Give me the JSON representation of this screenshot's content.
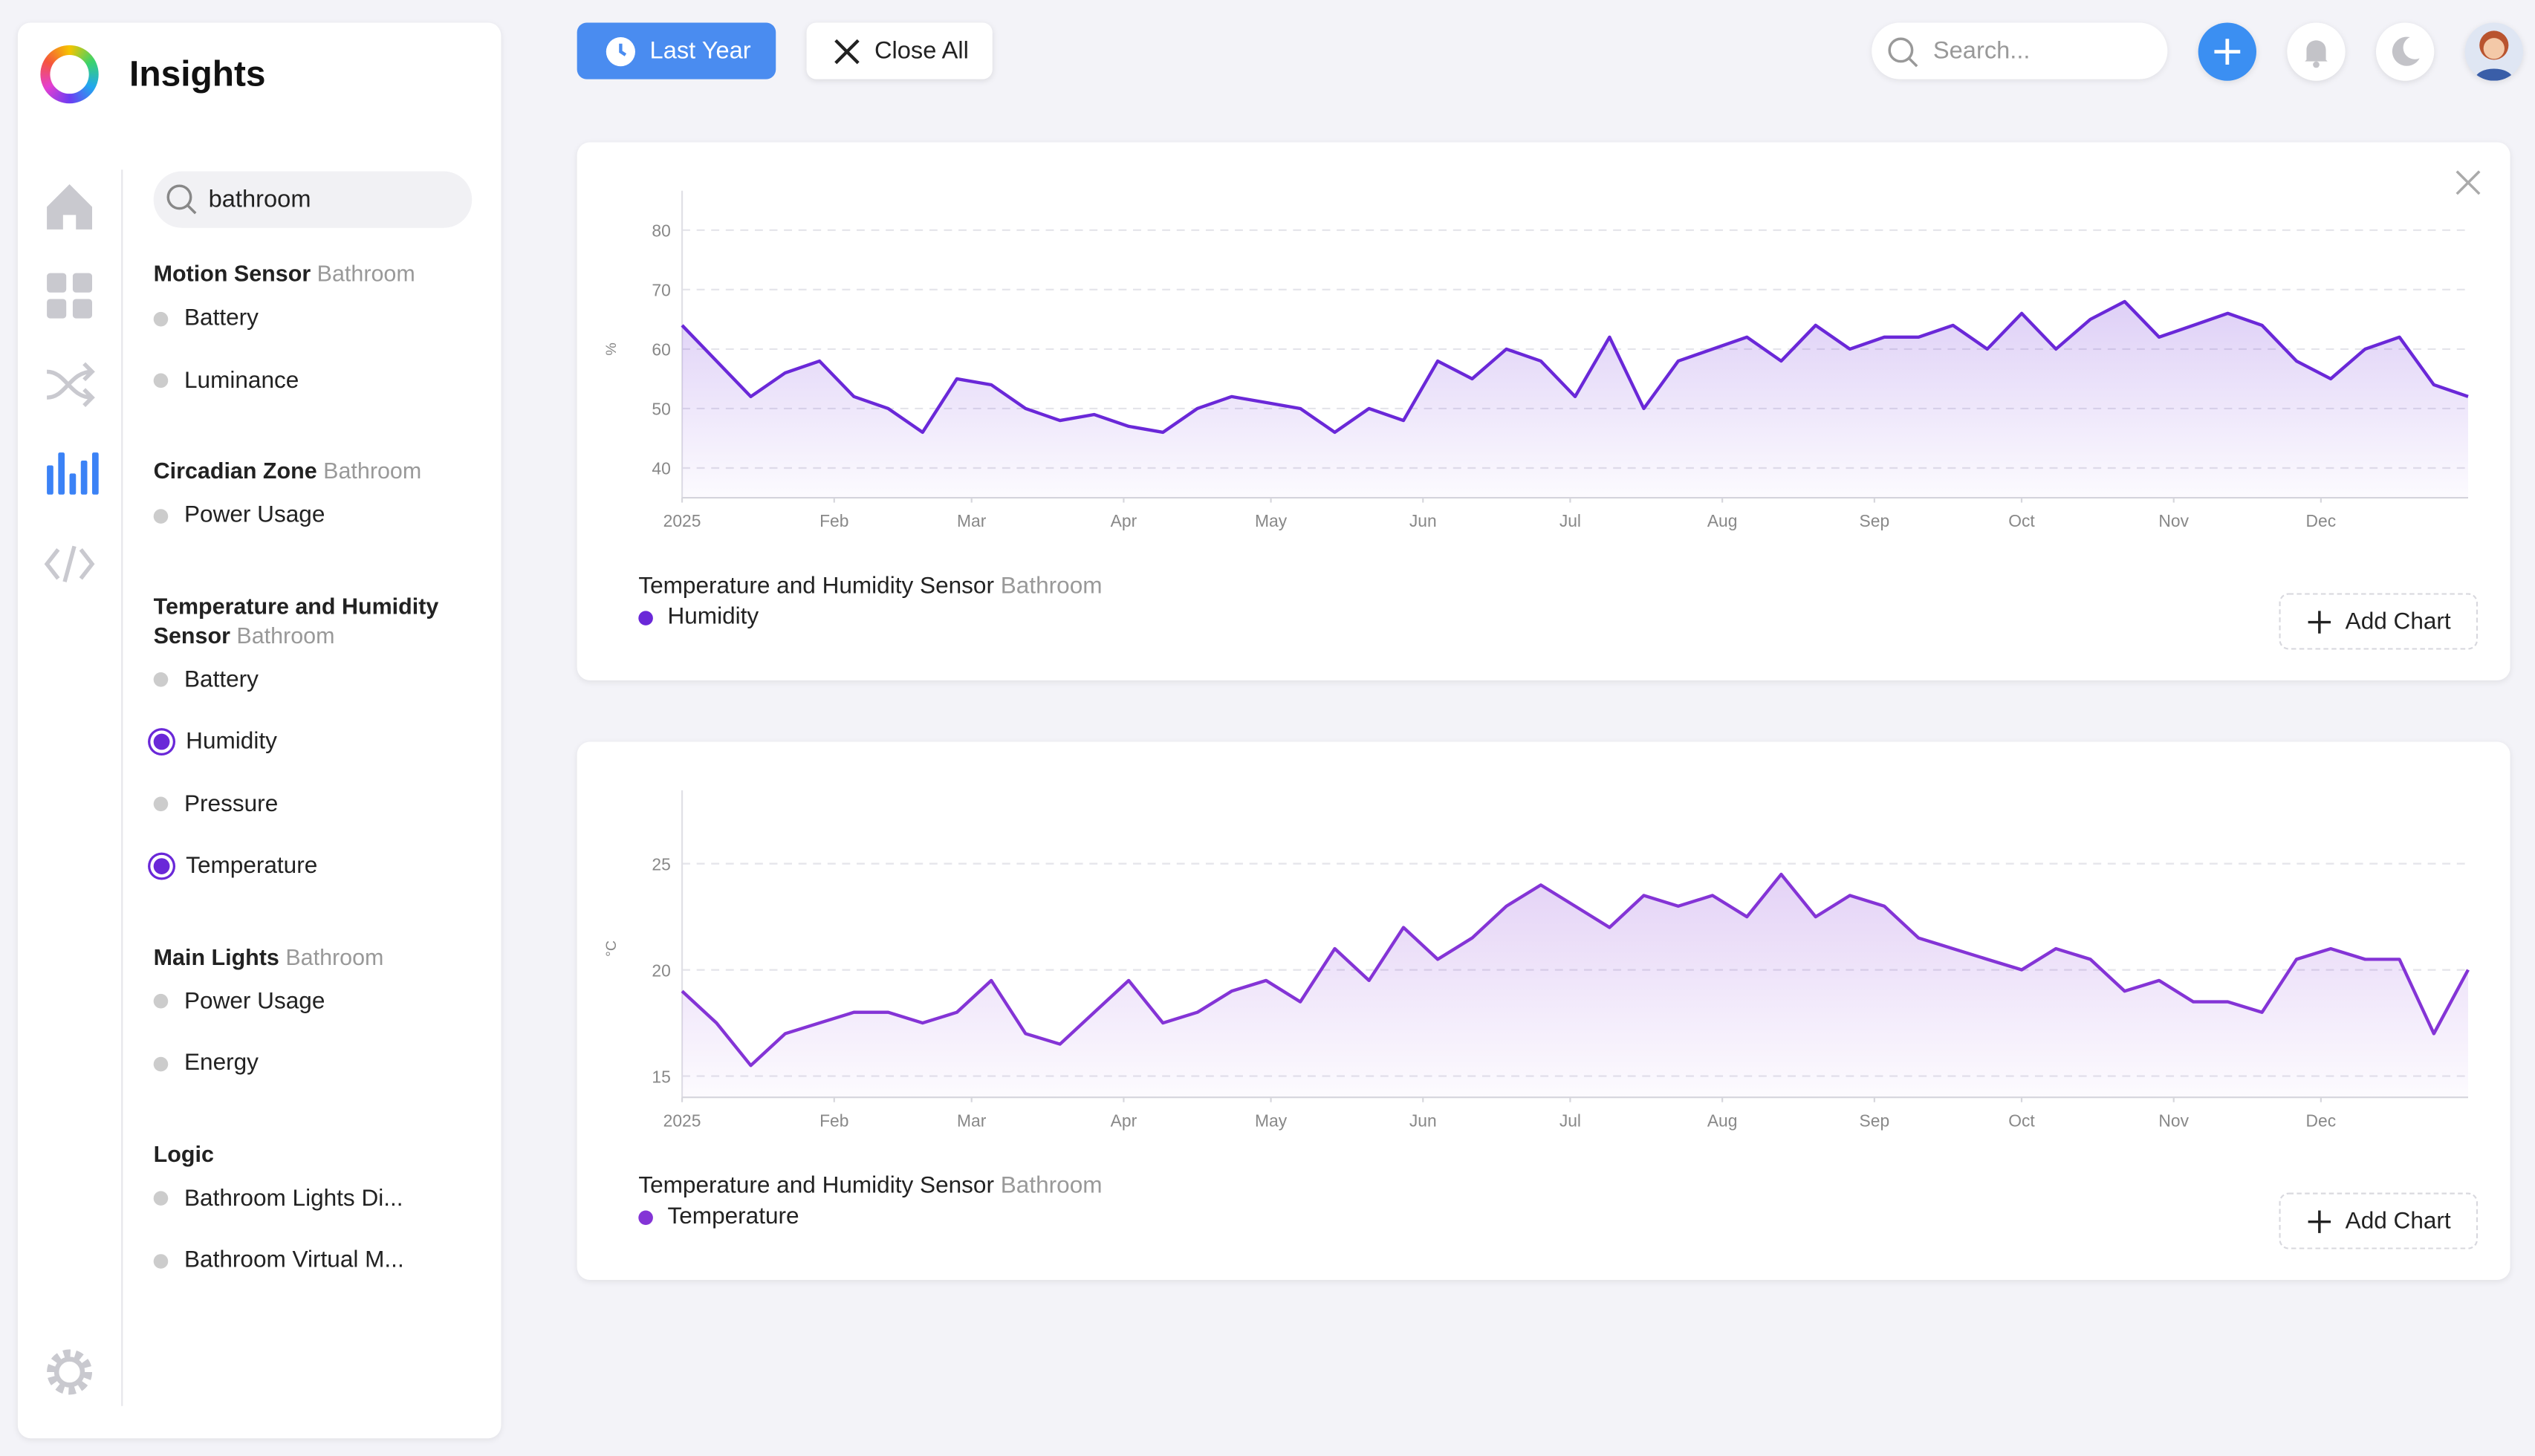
{
  "header": {
    "title": "Insights"
  },
  "toolbar": {
    "range": "Last Year",
    "close_all": "Close All",
    "search_placeholder": "Search..."
  },
  "sidebar": {
    "search": "bathroom",
    "groups": [
      {
        "name": "Motion Sensor",
        "location": "Bathroom",
        "items": [
          {
            "label": "Battery",
            "selected": false
          },
          {
            "label": "Luminance",
            "selected": false
          }
        ]
      },
      {
        "name": "Circadian Zone",
        "location": "Bathroom",
        "items": [
          {
            "label": "Power Usage",
            "selected": false
          }
        ]
      },
      {
        "name": "Temperature and Humidity Sensor",
        "location": "Bathroom",
        "items": [
          {
            "label": "Battery",
            "selected": false
          },
          {
            "label": "Humidity",
            "selected": true
          },
          {
            "label": "Pressure",
            "selected": false
          },
          {
            "label": "Temperature",
            "selected": true
          }
        ]
      },
      {
        "name": "Main Lights",
        "location": "Bathroom",
        "items": [
          {
            "label": "Power Usage",
            "selected": false
          },
          {
            "label": "Energy",
            "selected": false
          }
        ]
      },
      {
        "name": "Logic",
        "items": [
          {
            "label": "Bathroom Lights Di...",
            "selected": false
          },
          {
            "label": "Bathroom Virtual M...",
            "selected": false
          }
        ]
      }
    ]
  },
  "chart_data": [
    {
      "type": "line",
      "source": "Temperature and Humidity Sensor",
      "location": "Bathroom",
      "button": "Add Chart",
      "ylabel": "%",
      "grid": true,
      "x": [
        0,
        7,
        14,
        21,
        28,
        35,
        42,
        49,
        56,
        63,
        70,
        77,
        84,
        91,
        98,
        105,
        112,
        119,
        126,
        133,
        140,
        147,
        154,
        161,
        168,
        175,
        182,
        189,
        196,
        203,
        210,
        217,
        224,
        231,
        238,
        245,
        252,
        259,
        266,
        273,
        280,
        287,
        294,
        301,
        308,
        315,
        322,
        329,
        336,
        343,
        350,
        357,
        364
      ],
      "xlim": [
        0,
        364
      ],
      "xticks": [
        {
          "value": 0,
          "label": "2025"
        },
        {
          "value": 31,
          "label": "Feb"
        },
        {
          "value": 59,
          "label": "Mar"
        },
        {
          "value": 90,
          "label": "Apr"
        },
        {
          "value": 120,
          "label": "May"
        },
        {
          "value": 151,
          "label": "Jun"
        },
        {
          "value": 181,
          "label": "Jul"
        },
        {
          "value": 212,
          "label": "Aug"
        },
        {
          "value": 243,
          "label": "Sep"
        },
        {
          "value": 273,
          "label": "Oct"
        },
        {
          "value": 304,
          "label": "Nov"
        },
        {
          "value": 334,
          "label": "Dec"
        }
      ],
      "ylim": [
        35,
        85
      ],
      "yticks": [
        40,
        50,
        60,
        70,
        80
      ],
      "series": [
        {
          "name": "Humidity",
          "color": "#6a28d8",
          "values": [
            64,
            58,
            52,
            56,
            58,
            52,
            50,
            46,
            55,
            54,
            50,
            48,
            49,
            47,
            46,
            50,
            52,
            51,
            50,
            46,
            50,
            48,
            58,
            55,
            60,
            58,
            52,
            62,
            50,
            58,
            60,
            62,
            58,
            64,
            60,
            62,
            62,
            64,
            60,
            66,
            60,
            65,
            68,
            62,
            64,
            66,
            64,
            58,
            55,
            60,
            62,
            54,
            52
          ]
        }
      ]
    },
    {
      "type": "line",
      "source": "Temperature and Humidity Sensor",
      "location": "Bathroom",
      "button": "Add Chart",
      "ylabel": "°C",
      "grid": true,
      "x": [
        0,
        7,
        14,
        21,
        28,
        35,
        42,
        49,
        56,
        63,
        70,
        77,
        84,
        91,
        98,
        105,
        112,
        119,
        126,
        133,
        140,
        147,
        154,
        161,
        168,
        175,
        182,
        189,
        196,
        203,
        210,
        217,
        224,
        231,
        238,
        245,
        252,
        259,
        266,
        273,
        280,
        287,
        294,
        301,
        308,
        315,
        322,
        329,
        336,
        343,
        350,
        357,
        364
      ],
      "xlim": [
        0,
        364
      ],
      "xticks": [
        {
          "value": 0,
          "label": "2025"
        },
        {
          "value": 31,
          "label": "Feb"
        },
        {
          "value": 59,
          "label": "Mar"
        },
        {
          "value": 90,
          "label": "Apr"
        },
        {
          "value": 120,
          "label": "May"
        },
        {
          "value": 151,
          "label": "Jun"
        },
        {
          "value": 181,
          "label": "Jul"
        },
        {
          "value": 212,
          "label": "Aug"
        },
        {
          "value": 243,
          "label": "Sep"
        },
        {
          "value": 273,
          "label": "Oct"
        },
        {
          "value": 304,
          "label": "Nov"
        },
        {
          "value": 334,
          "label": "Dec"
        }
      ],
      "ylim": [
        14,
        28
      ],
      "yticks": [
        15,
        20,
        25
      ],
      "series": [
        {
          "name": "Temperature",
          "color": "#8434d6",
          "values": [
            19,
            17.5,
            15.5,
            17,
            17.5,
            18,
            18,
            17.5,
            18,
            19.5,
            17,
            16.5,
            18,
            19.5,
            17.5,
            18,
            19,
            19.5,
            18.5,
            21,
            19.5,
            22,
            20.5,
            21.5,
            23,
            24,
            23,
            22,
            23.5,
            23,
            23.5,
            22.5,
            24.5,
            22.5,
            23.5,
            23,
            21.5,
            21,
            20.5,
            20,
            21,
            20.5,
            19,
            19.5,
            18.5,
            18.5,
            18,
            20.5,
            21,
            20.5,
            20.5,
            17,
            20
          ]
        }
      ]
    }
  ]
}
